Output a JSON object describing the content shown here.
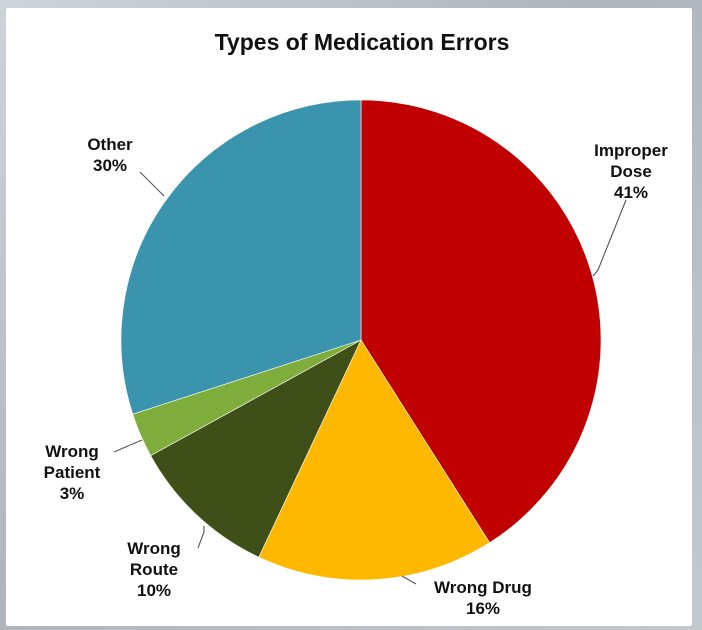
{
  "chart_data": {
    "type": "pie",
    "title": "Types of Medication Errors",
    "slices": [
      {
        "label_lines": [
          "Improper",
          "Dose"
        ],
        "value_label": "41%",
        "value": 41,
        "color": "#c00000"
      },
      {
        "label_lines": [
          "Wrong Drug"
        ],
        "value_label": "16%",
        "value": 16,
        "color": "#ffb800"
      },
      {
        "label_lines": [
          "Wrong",
          "Route"
        ],
        "value_label": "10%",
        "value": 10,
        "color": "#3f4f18"
      },
      {
        "label_lines": [
          "Wrong",
          "Patient"
        ],
        "value_label": "3%",
        "value": 3,
        "color": "#7fad3c"
      },
      {
        "label_lines": [
          "Other"
        ],
        "value_label": "30%",
        "value": 30,
        "color": "#3a94ad"
      }
    ],
    "start_angle": "12 o'clock",
    "direction": "clockwise",
    "legend": "none"
  }
}
